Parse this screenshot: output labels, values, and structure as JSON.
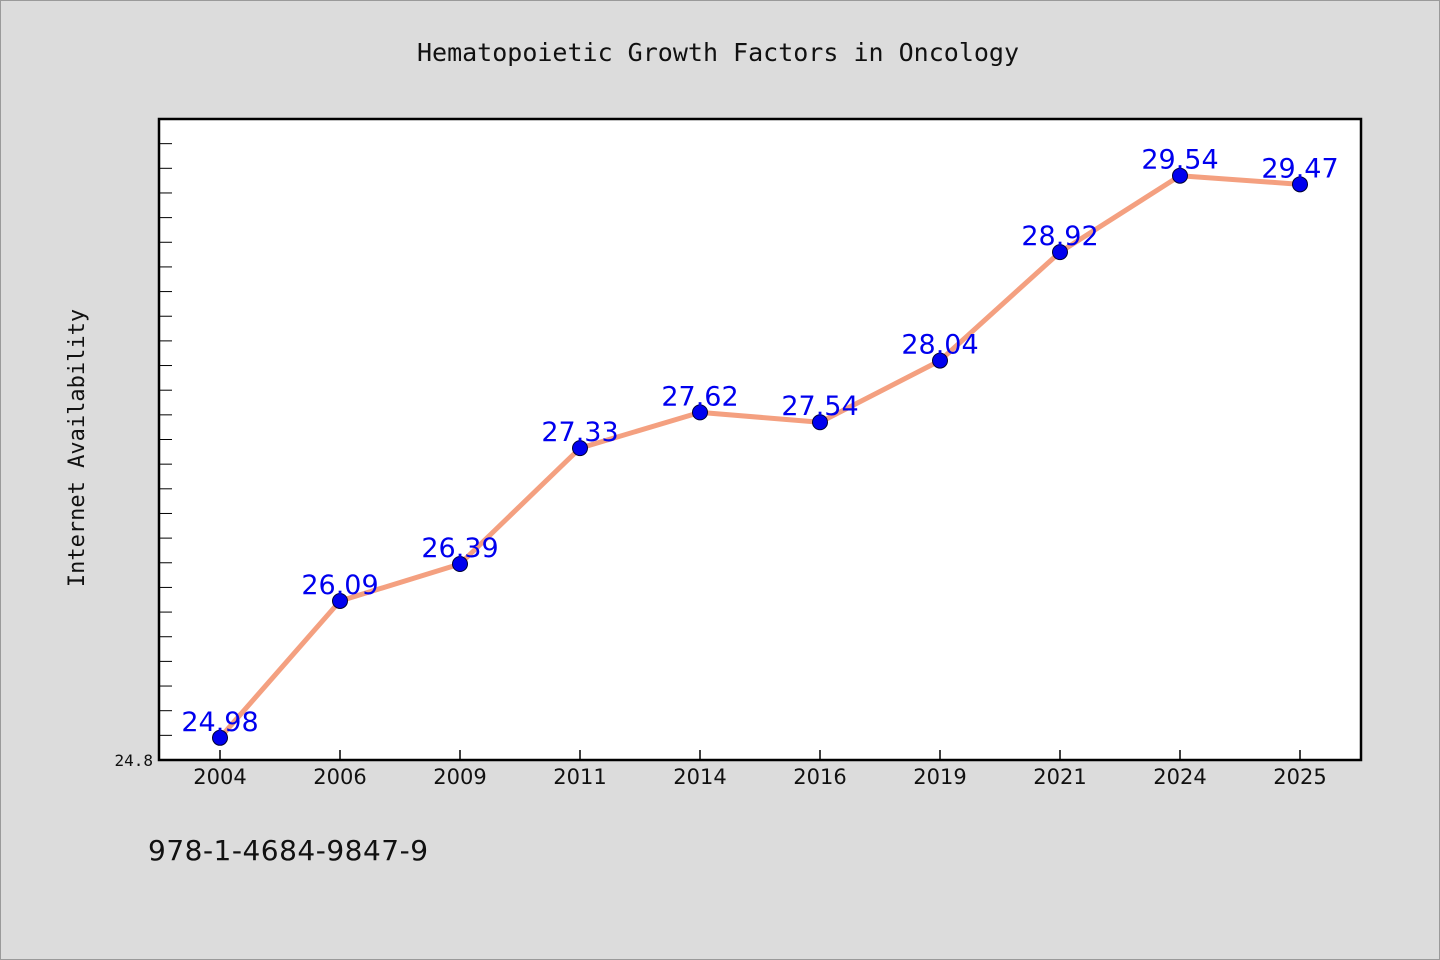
{
  "chart_data": {
    "type": "line",
    "title": "Hematopoietic Growth Factors in Oncology",
    "xlabel": "",
    "ylabel": "Internet Availability",
    "categories": [
      "2004",
      "2006",
      "2009",
      "2011",
      "2014",
      "2016",
      "2019",
      "2021",
      "2024",
      "2025"
    ],
    "values": [
      24.98,
      26.09,
      26.39,
      27.33,
      27.62,
      27.54,
      28.04,
      28.92,
      29.54,
      29.47
    ],
    "data_labels": [
      "24.98",
      "26.09",
      "26.39",
      "27.33",
      "27.62",
      "27.54",
      "28.04",
      "28.92",
      "29.54",
      "29.47"
    ],
    "y_tick_labels": [
      "24.8"
    ],
    "ylim": [
      24.8,
      30.0
    ],
    "grid": false,
    "legend": "none",
    "line_color": "#f4a080",
    "marker_color": "#0000ee",
    "label_color": "#0000ee"
  },
  "footer": {
    "isbn": "978-1-4684-9847-9"
  }
}
